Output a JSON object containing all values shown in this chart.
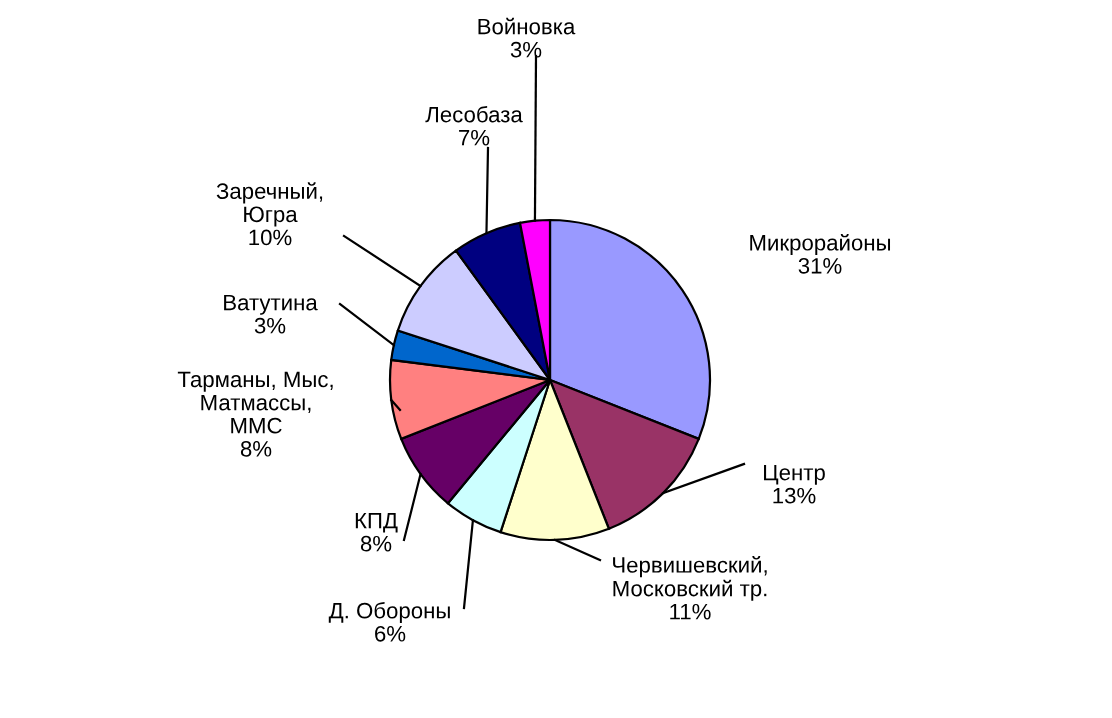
{
  "chart_data": {
    "type": "pie",
    "categories": [
      "Микрорайоны",
      "Центр",
      "Червишевский,\nМосковский тр.",
      "Д. Обороны",
      "КПД",
      "Тарманы, Мыс,\nМатмассы,\nММС",
      "Ватутина",
      "Заречный,\nЮгра",
      "Лесобаза",
      "Войновка"
    ],
    "values": [
      31,
      13,
      11,
      6,
      8,
      8,
      3,
      10,
      7,
      3
    ],
    "value_labels": [
      "31%",
      "13%",
      "11%",
      "6%",
      "8%",
      "8%",
      "3%",
      "10%",
      "7%",
      "3%"
    ],
    "colors": [
      "#9999ff",
      "#993366",
      "#ffffcc",
      "#ccffff",
      "#660066",
      "#ff8080",
      "#0066cc",
      "#ccccff",
      "#000080",
      "#ff00ff"
    ],
    "legend": false
  }
}
